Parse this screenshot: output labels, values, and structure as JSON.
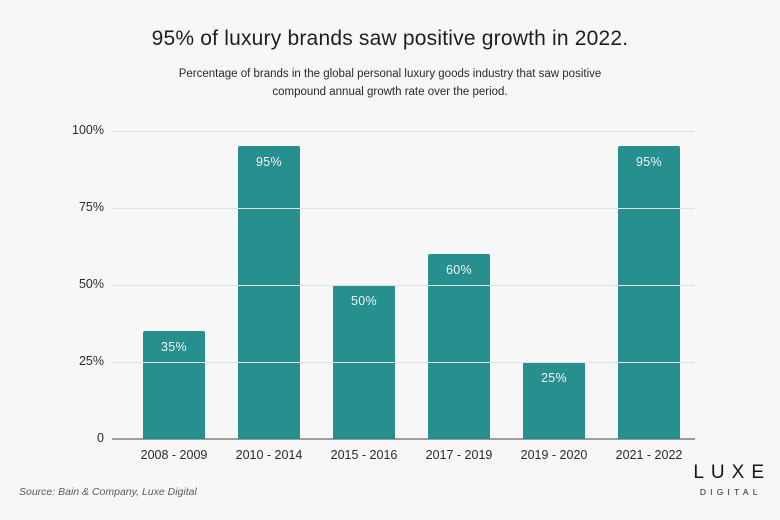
{
  "header": {
    "title": "95% of luxury brands saw positive growth in 2022.",
    "subtitle": "Percentage of brands in the global personal luxury goods industry that saw positive compound annual growth rate over the period."
  },
  "chart_data": {
    "type": "bar",
    "categories": [
      "2008 - 2009",
      "2010 - 2014",
      "2015 - 2016",
      "2017 - 2019",
      "2019 - 2020",
      "2021 - 2022"
    ],
    "values": [
      35,
      95,
      50,
      60,
      25,
      95
    ],
    "bar_labels": [
      "35%",
      "95%",
      "50%",
      "60%",
      "25%",
      "95%"
    ],
    "y_ticks": [
      "100%",
      "75%",
      "50%",
      "25%",
      "0"
    ],
    "y_tick_values": [
      100,
      75,
      50,
      25,
      0
    ],
    "ylim": [
      0,
      100
    ],
    "grid": true,
    "legend": false,
    "title": "95% of luxury brands saw positive growth in 2022.",
    "xlabel": "",
    "ylabel": ""
  },
  "colors": {
    "bar": "#278f8e",
    "background": "#f7f7f7",
    "gridline": "#e3e3e3",
    "baseline": "#9d9d9d",
    "bar_label": "#eef3f3"
  },
  "footer": {
    "source": "Source: Bain & Company, Luxe Digital",
    "logo_line1": "LUXE",
    "logo_line2": "DIGITAL"
  }
}
